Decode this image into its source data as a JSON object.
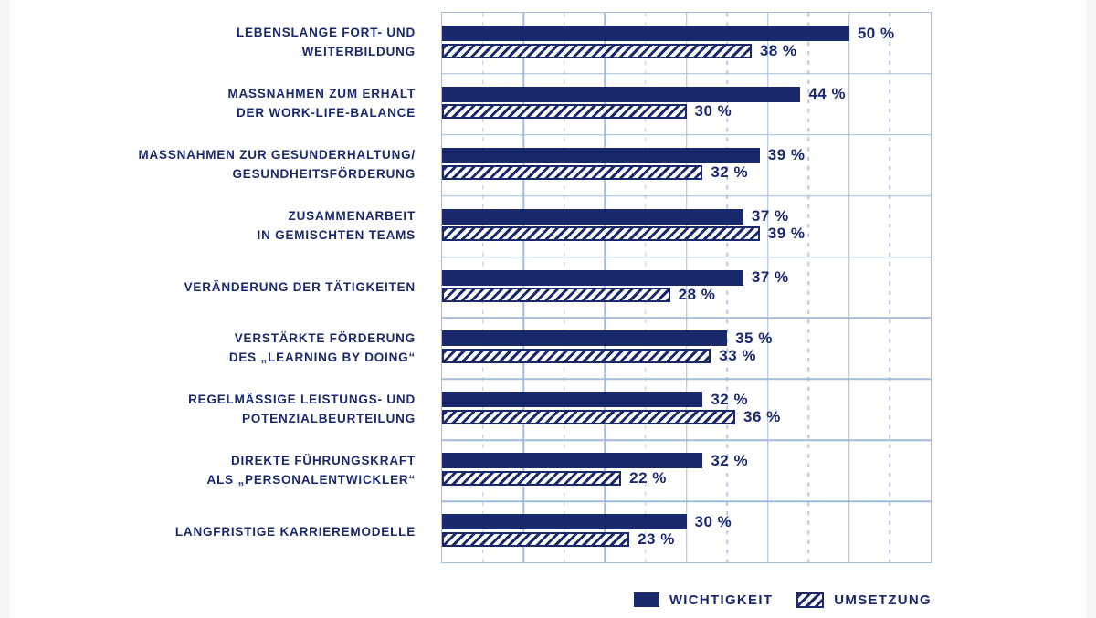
{
  "chart_data": {
    "type": "bar",
    "orientation": "horizontal",
    "title": "",
    "categories": [
      "LEBENSLANGE FORT- UND\nWEITERBILDUNG",
      "MASSNAHMEN ZUM ERHALT\nDER WORK-LIFE-BALANCE",
      "MASSNAHMEN ZUR GESUNDERHALTUNG/\nGESUNDHEITSFÖRDERUNG",
      "ZUSAMMENARBEIT\nIN GEMISCHTEN TEAMS",
      "VERÄNDERUNG DER TÄTIGKEITEN",
      "VERSTÄRKTE FÖRDERUNG\nDES „LEARNING BY DOING“",
      "REGELMÄSSIGE LEISTUNGS- UND\nPOTENZIALBEURTEILUNG",
      "DIREKTE FÜHRUNGSKRAFT\nALS „PERSONALENTWICKLER“",
      "LANGFRISTIGE KARRIEREMODELLE"
    ],
    "series": [
      {
        "name": "WICHTIGKEIT",
        "style": "solid",
        "values": [
          50,
          44,
          39,
          37,
          37,
          35,
          32,
          32,
          30
        ]
      },
      {
        "name": "UMSETZUNG",
        "style": "hatched",
        "values": [
          38,
          30,
          32,
          39,
          28,
          33,
          36,
          22,
          23
        ]
      }
    ],
    "value_suffix": " %",
    "xlim": [
      0,
      60
    ],
    "gridlines": {
      "solid_ticks": [
        10,
        20,
        30,
        40,
        50
      ],
      "dashed_ticks": [
        5,
        15,
        25,
        35,
        45,
        55
      ]
    },
    "grid": true,
    "axis_tick_labels_visible": false,
    "legend_position": "bottom-right",
    "colors": {
      "bar": "#19296c",
      "text": "#19296c",
      "grid_solid": "#a3bcdc",
      "grid_dashed": "#b5c9e5",
      "background": "#ffffff",
      "page_edge": "#f7f7f8"
    }
  }
}
